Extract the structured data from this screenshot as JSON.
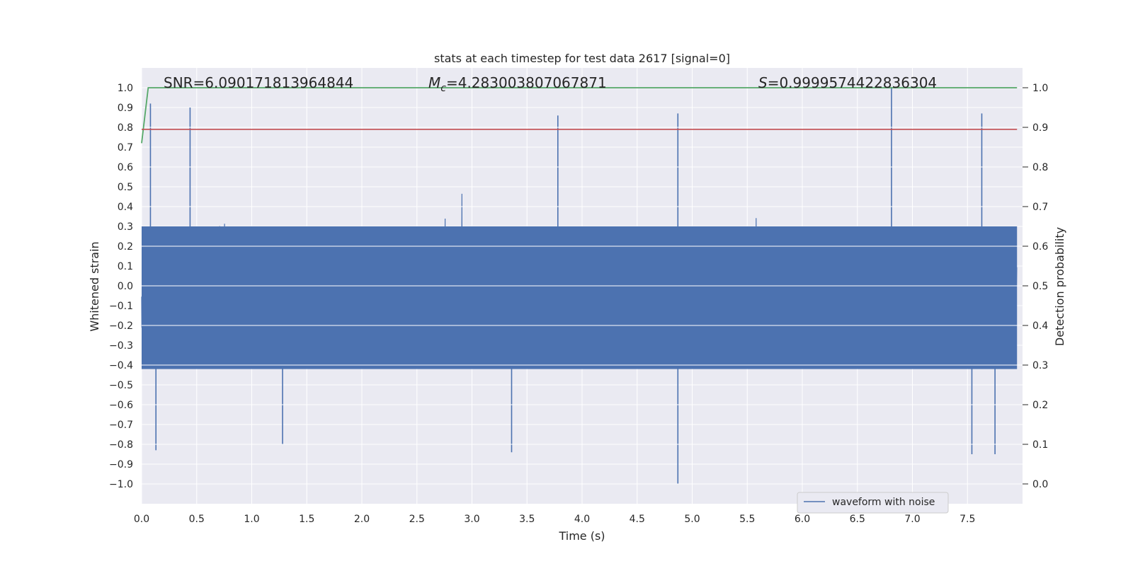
{
  "chart_data": {
    "type": "line",
    "title": "stats at each timestep for test data 2617 [signal=0]",
    "xlabel": "Time (s)",
    "ylabel_left": "Whitened strain",
    "ylabel_right": "Detection probability",
    "xlim": [
      0.0,
      8.0
    ],
    "ylim_left": [
      -1.1,
      1.1
    ],
    "ylim_right": [
      -0.05,
      1.05
    ],
    "xticks": [
      0.0,
      0.5,
      1.0,
      1.5,
      2.0,
      2.5,
      3.0,
      3.5,
      4.0,
      4.5,
      5.0,
      5.5,
      6.0,
      6.5,
      7.0,
      7.5
    ],
    "xtick_labels": [
      "0.0",
      "0.5",
      "1.0",
      "1.5",
      "2.0",
      "2.5",
      "3.0",
      "3.5",
      "4.0",
      "4.5",
      "5.0",
      "5.5",
      "6.0",
      "6.5",
      "7.0",
      "7.5"
    ],
    "yticks_left": [
      -1.0,
      -0.9,
      -0.8,
      -0.7,
      -0.6,
      -0.5,
      -0.4,
      -0.3,
      -0.2,
      -0.1,
      0.0,
      0.1,
      0.2,
      0.3,
      0.4,
      0.5,
      0.6,
      0.7,
      0.8,
      0.9,
      1.0
    ],
    "ytick_labels_left": [
      "−1.0",
      "−0.9",
      "−0.8",
      "−0.7",
      "−0.6",
      "−0.5",
      "−0.4",
      "−0.3",
      "−0.2",
      "−0.1",
      "0.0",
      "0.1",
      "0.2",
      "0.3",
      "0.4",
      "0.5",
      "0.6",
      "0.7",
      "0.8",
      "0.9",
      "1.0"
    ],
    "yticks_right": [
      0.0,
      0.1,
      0.2,
      0.3,
      0.4,
      0.5,
      0.6,
      0.7,
      0.8,
      0.9,
      1.0
    ],
    "ytick_labels_right": [
      "0.0",
      "0.1",
      "0.2",
      "0.3",
      "0.4",
      "0.5",
      "0.6",
      "0.7",
      "0.8",
      "0.9",
      "1.0"
    ],
    "annotations": {
      "snr": "SNR=6.090171813964844",
      "mc_symbol": "M",
      "mc_sub": "c",
      "mc_value": "=4.283003807067871",
      "s_symbol": "S",
      "s_value": "=0.9999574422836304"
    },
    "series": [
      {
        "name": "waveform with noise",
        "axis": "left",
        "color": "#4c72b0",
        "envelope_max": 1.0,
        "envelope_min": -1.0,
        "peaks": [
          {
            "t": 0.08,
            "y": 0.92
          },
          {
            "t": 0.44,
            "y": 0.9
          },
          {
            "t": 3.78,
            "y": 0.86
          },
          {
            "t": 4.87,
            "y": 0.87
          },
          {
            "t": 6.81,
            "y": 1.0
          },
          {
            "t": 7.63,
            "y": 0.87
          },
          {
            "t": 4.87,
            "y": -1.0
          },
          {
            "t": 0.13,
            "y": -0.83
          },
          {
            "t": 3.36,
            "y": -0.84
          },
          {
            "t": 7.54,
            "y": -0.85
          },
          {
            "t": 7.75,
            "y": -0.85
          },
          {
            "t": 1.28,
            "y": -0.8
          }
        ]
      },
      {
        "name": "",
        "axis": "right",
        "color": "#55a868",
        "t": [
          0.0,
          0.06,
          0.15,
          7.95
        ],
        "y": [
          0.86,
          1.0,
          1.0,
          1.0
        ]
      },
      {
        "name": "",
        "axis": "left",
        "color": "#c44e52",
        "t": [
          0.0,
          7.95
        ],
        "y": [
          0.79,
          0.79
        ]
      }
    ],
    "legend": {
      "entries": [
        "waveform with noise"
      ],
      "placement": "lower right"
    },
    "grid": true
  }
}
